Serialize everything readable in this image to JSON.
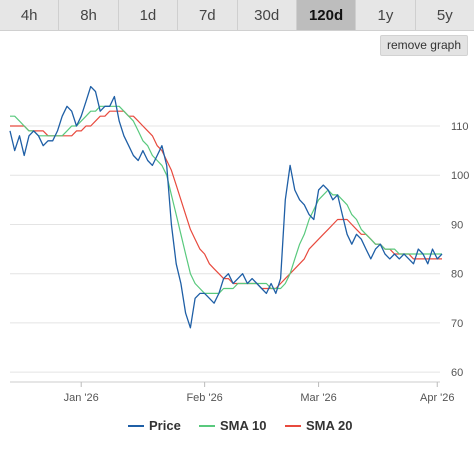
{
  "range_tabs": [
    {
      "label": "4h"
    },
    {
      "label": "8h"
    },
    {
      "label": "1d"
    },
    {
      "label": "7d"
    },
    {
      "label": "30d"
    },
    {
      "label": "120d"
    },
    {
      "label": "1y"
    },
    {
      "label": "5y"
    }
  ],
  "active_range": "120d",
  "remove_button": "remove graph",
  "colors": {
    "price": "#1f5fa6",
    "sma10": "#59c97d",
    "sma20": "#e84a3e",
    "grid": "#e4e4e4"
  },
  "chart_data": {
    "type": "line",
    "x_labels": [
      "Jan '26",
      "Feb '26",
      "Mar '26",
      "Apr '26"
    ],
    "y_ticks": [
      60,
      70,
      80,
      90,
      100,
      110
    ],
    "ylim": [
      58,
      123
    ],
    "grid": true,
    "legend_position": "bottom",
    "series": [
      {
        "name": "Price",
        "key": "price",
        "values": [
          109,
          105,
          108,
          104,
          108,
          109,
          108,
          106,
          107,
          107,
          109,
          112,
          114,
          113,
          110,
          112,
          115,
          118,
          117,
          113,
          114,
          114,
          116,
          111,
          108,
          106,
          104,
          103,
          105,
          103,
          102,
          104,
          106,
          102,
          90,
          82,
          78,
          72,
          69,
          75,
          76,
          76,
          75,
          74,
          76,
          79,
          80,
          78,
          79,
          80,
          78,
          79,
          78,
          77,
          76,
          78,
          76,
          79,
          95,
          102,
          97,
          95,
          94,
          92,
          91,
          97,
          98,
          97,
          95,
          96,
          92,
          88,
          86,
          88,
          87,
          85,
          83,
          85,
          86,
          84,
          83,
          84,
          83,
          84,
          83,
          82,
          85,
          84,
          82,
          85,
          83,
          84
        ]
      },
      {
        "name": "SMA 10",
        "key": "sma10",
        "values": [
          112,
          112,
          111,
          110,
          109,
          109,
          108,
          108,
          108,
          108,
          108,
          108,
          109,
          110,
          110,
          111,
          112,
          113,
          113,
          114,
          114,
          114,
          114,
          114,
          113,
          112,
          111,
          109,
          107,
          106,
          104,
          103,
          102,
          100,
          96,
          92,
          88,
          84,
          80,
          78,
          77,
          76,
          76,
          76,
          76,
          77,
          77,
          77,
          78,
          78,
          78,
          78,
          78,
          78,
          78,
          77,
          77,
          77,
          78,
          80,
          83,
          86,
          88,
          91,
          93,
          95,
          96,
          97,
          96,
          96,
          95,
          94,
          92,
          91,
          89,
          88,
          87,
          86,
          86,
          85,
          85,
          85,
          84,
          84,
          84,
          84,
          84,
          84,
          84,
          84,
          84,
          84
        ]
      },
      {
        "name": "SMA 20",
        "key": "sma20",
        "values": [
          110,
          110,
          110,
          110,
          109,
          109,
          109,
          109,
          108,
          108,
          108,
          108,
          108,
          108,
          109,
          109,
          110,
          110,
          111,
          112,
          112,
          113,
          113,
          113,
          113,
          112,
          112,
          111,
          110,
          109,
          108,
          106,
          105,
          103,
          101,
          98,
          95,
          92,
          89,
          87,
          85,
          84,
          82,
          81,
          80,
          79,
          79,
          78,
          78,
          78,
          78,
          78,
          78,
          77,
          77,
          77,
          77,
          78,
          79,
          80,
          81,
          82,
          83,
          85,
          86,
          87,
          88,
          89,
          90,
          91,
          91,
          91,
          90,
          89,
          88,
          88,
          87,
          86,
          86,
          85,
          85,
          84,
          84,
          84,
          84,
          83,
          83,
          83,
          83,
          83,
          83,
          83
        ]
      }
    ]
  }
}
